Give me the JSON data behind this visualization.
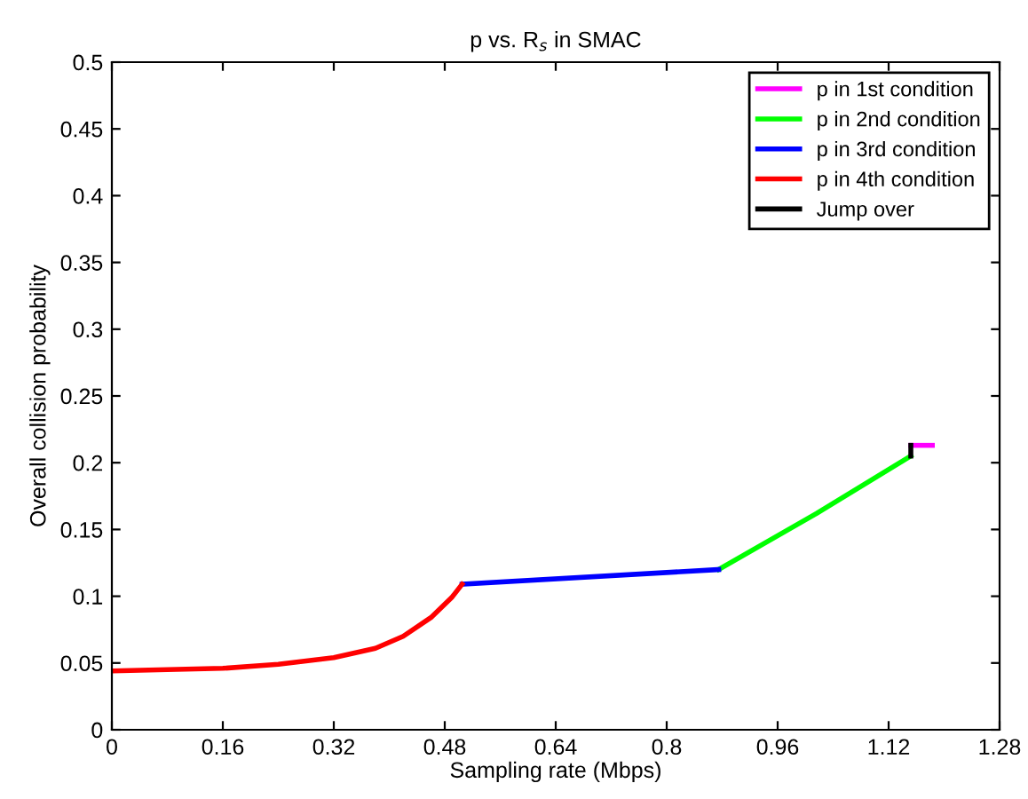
{
  "chart_data": {
    "type": "line",
    "title": "p vs. R$_{s}$ in SMAC",
    "xlabel": "Sampling rate (Mbps)",
    "ylabel": "Overall collision probability",
    "xlim": [
      0,
      1.28
    ],
    "ylim": [
      0,
      0.5
    ],
    "xticks": [
      0,
      0.16,
      0.32,
      0.48,
      0.64,
      0.8,
      0.96,
      1.12,
      1.28
    ],
    "yticks": [
      0,
      0.05,
      0.1,
      0.15,
      0.2,
      0.25,
      0.3,
      0.35,
      0.4,
      0.45,
      0.5
    ],
    "legend": "top right",
    "grid": false,
    "series": [
      {
        "name": "p in 1st condition",
        "color": "#ff00ff",
        "x": [
          1.152,
          1.183
        ],
        "values": [
          0.213,
          0.213
        ]
      },
      {
        "name": "p in 2nd condition",
        "color": "#00ff00",
        "x": [
          0.875,
          1.016,
          1.152
        ],
        "values": [
          0.12,
          0.162,
          0.205
        ]
      },
      {
        "name": "p in 3rd condition",
        "color": "#0000ff",
        "x": [
          0.505,
          0.875
        ],
        "values": [
          0.109,
          0.12
        ]
      },
      {
        "name": "p in 4th condition",
        "color": "#ff0000",
        "x": [
          0,
          0.16,
          0.24,
          0.32,
          0.38,
          0.42,
          0.46,
          0.49,
          0.505
        ],
        "values": [
          0.044,
          0.046,
          0.049,
          0.054,
          0.061,
          0.07,
          0.084,
          0.099,
          0.109
        ]
      },
      {
        "name": "Jump over",
        "color": "#000000",
        "x": [
          1.152,
          1.152
        ],
        "values": [
          0.205,
          0.213
        ]
      }
    ]
  }
}
